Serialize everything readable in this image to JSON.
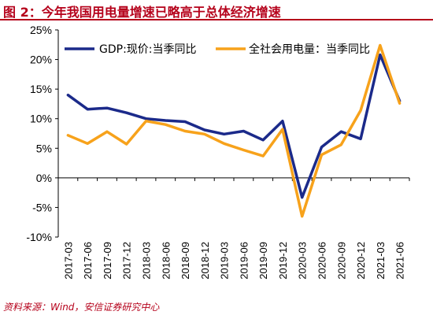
{
  "header": {
    "title": "图 2：今年我国用电量增速已略高于总体经济增速"
  },
  "footer": {
    "source": "资料来源：Wind，安信证券研究中心"
  },
  "colors": {
    "title": "#b5001a",
    "gdp": "#1b2a8a",
    "power": "#f7a21b"
  },
  "chart_data": {
    "type": "line",
    "title": "",
    "xlabel": "",
    "ylabel": "",
    "x": [
      "2017-03",
      "2017-06",
      "2017-09",
      "2017-12",
      "2018-03",
      "2018-06",
      "2018-09",
      "2018-12",
      "2019-03",
      "2019-06",
      "2019-09",
      "2019-12",
      "2020-03",
      "2020-06",
      "2020-09",
      "2020-12",
      "2021-03",
      "2021-06"
    ],
    "y_ticks": [
      "25%",
      "20%",
      "15%",
      "10%",
      "5%",
      "0%",
      "-5%",
      "-10%"
    ],
    "y_tick_values": [
      25,
      20,
      15,
      10,
      5,
      0,
      -5,
      -10
    ],
    "ylim": [
      -10,
      25
    ],
    "grid": false,
    "legend_position": "top",
    "series": [
      {
        "name": "GDP:现价:当季同比",
        "color": "#1b2a8a",
        "values": [
          14.0,
          11.6,
          11.8,
          11.0,
          10.0,
          9.7,
          9.5,
          8.1,
          7.4,
          7.9,
          6.4,
          9.6,
          -3.3,
          5.2,
          7.8,
          6.6,
          20.8,
          13.0
        ]
      },
      {
        "name": "全社会用电量：当季同比",
        "color": "#f7a21b",
        "values": [
          7.2,
          5.8,
          7.8,
          5.7,
          9.6,
          9.0,
          7.9,
          7.4,
          5.8,
          4.7,
          3.7,
          8.2,
          -6.5,
          3.9,
          5.6,
          11.4,
          22.4,
          12.6
        ]
      }
    ]
  }
}
